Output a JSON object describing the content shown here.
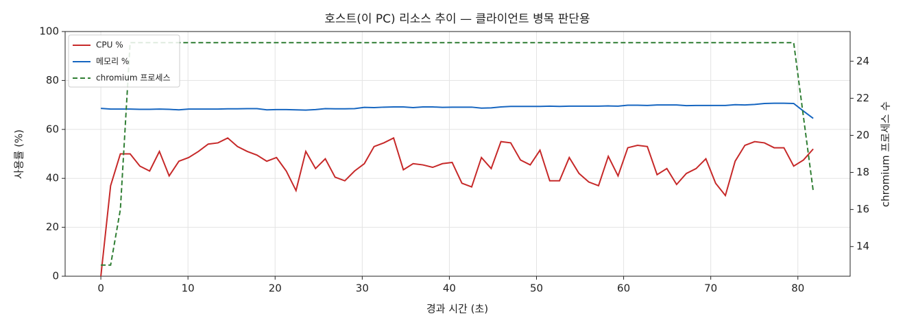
{
  "chart_data": {
    "type": "line",
    "title": "호스트(이 PC) 리소스 추이 — 클라이언트 병목 판단용",
    "x_label": "경과 시간 (초)",
    "y_label": "사용률 (%)",
    "y2_label": "chromium 프로세스 수",
    "x": [
      0,
      1.12,
      2.24,
      3.36,
      4.48,
      5.6,
      6.72,
      7.84,
      8.96,
      10.08,
      11.2,
      12.32,
      13.44,
      14.56,
      15.68,
      16.8,
      17.92,
      19.04,
      20.16,
      21.28,
      22.4,
      23.52,
      24.64,
      25.76,
      26.88,
      28,
      29.12,
      30.24,
      31.36,
      32.48,
      33.6,
      34.72,
      35.84,
      36.96,
      38.08,
      39.2,
      40.32,
      41.44,
      42.56,
      43.68,
      44.8,
      45.92,
      47.04,
      48.16,
      49.28,
      50.4,
      51.52,
      52.64,
      53.76,
      54.88,
      56,
      57.12,
      58.24,
      59.36,
      60.48,
      61.6,
      62.72,
      63.84,
      64.96,
      66.08,
      67.2,
      68.32,
      69.44,
      70.56,
      71.68,
      72.8,
      73.92,
      75.04,
      76.16,
      77.28,
      78.4,
      79.52,
      80.64,
      81.76
    ],
    "series": [
      {
        "name": "CPU %",
        "color": "#c62828",
        "linestyle": "solid",
        "axis": "y",
        "values": [
          0,
          37,
          50,
          50,
          45,
          43,
          51,
          41,
          47,
          48.5,
          51,
          54,
          54.5,
          56.5,
          53,
          51,
          49.5,
          47,
          48.5,
          43,
          35,
          51,
          44,
          48,
          40.5,
          39,
          43,
          46,
          53,
          54.5,
          56.5,
          43.5,
          46,
          45.5,
          44.5,
          46,
          46.5,
          38,
          36.5,
          48.5,
          44,
          55,
          54.5,
          47.5,
          45.5,
          51.5,
          39,
          39,
          48.5,
          42,
          38.5,
          37,
          49,
          41,
          52.5,
          53.5,
          53,
          41.5,
          44,
          37.5,
          42,
          44,
          48,
          38,
          33,
          47,
          53.5,
          55,
          54.5,
          52.5,
          52.5,
          45,
          47.5,
          52
        ]
      },
      {
        "name": "메모리 %",
        "color": "#1565c0",
        "linestyle": "solid",
        "axis": "y",
        "values": [
          68.6,
          68.3,
          68.3,
          68.3,
          68.2,
          68.2,
          68.3,
          68.2,
          68.0,
          68.3,
          68.3,
          68.3,
          68.3,
          68.4,
          68.4,
          68.5,
          68.5,
          68.0,
          68.1,
          68.1,
          68.0,
          67.9,
          68.1,
          68.5,
          68.4,
          68.4,
          68.5,
          69.0,
          68.9,
          69.1,
          69.2,
          69.2,
          68.9,
          69.2,
          69.2,
          69.0,
          69.1,
          69.1,
          69.1,
          68.7,
          68.8,
          69.2,
          69.4,
          69.4,
          69.4,
          69.4,
          69.5,
          69.4,
          69.5,
          69.5,
          69.5,
          69.5,
          69.6,
          69.5,
          69.9,
          69.9,
          69.8,
          70.0,
          70.0,
          70.0,
          69.7,
          69.8,
          69.8,
          69.8,
          69.8,
          70.1,
          70.0,
          70.2,
          70.6,
          70.7,
          70.7,
          70.6,
          67.5,
          64.5
        ]
      },
      {
        "name": "chromium 프로세스",
        "color": "#2e7d32",
        "linestyle": "dashed",
        "axis": "y2",
        "values": [
          13,
          13,
          16,
          25,
          25,
          25,
          25,
          25,
          25,
          25,
          25,
          25,
          25,
          25,
          25,
          25,
          25,
          25,
          25,
          25,
          25,
          25,
          25,
          25,
          25,
          25,
          25,
          25,
          25,
          25,
          25,
          25,
          25,
          25,
          25,
          25,
          25,
          25,
          25,
          25,
          25,
          25,
          25,
          25,
          25,
          25,
          25,
          25,
          25,
          25,
          25,
          25,
          25,
          25,
          25,
          25,
          25,
          25,
          25,
          25,
          25,
          25,
          25,
          25,
          25,
          25,
          25,
          25,
          25,
          25,
          25,
          25,
          21,
          17
        ]
      }
    ],
    "xlim": [
      -4.1,
      86
    ],
    "xticks": [
      0,
      10,
      20,
      30,
      40,
      50,
      60,
      70,
      80
    ],
    "ylim": [
      0,
      100
    ],
    "yticks": [
      0,
      20,
      40,
      60,
      80,
      100
    ],
    "y2lim": [
      12.4,
      25.6
    ],
    "y2ticks": [
      14,
      16,
      18,
      20,
      22,
      24
    ],
    "grid": true,
    "legend": "upper-left"
  }
}
